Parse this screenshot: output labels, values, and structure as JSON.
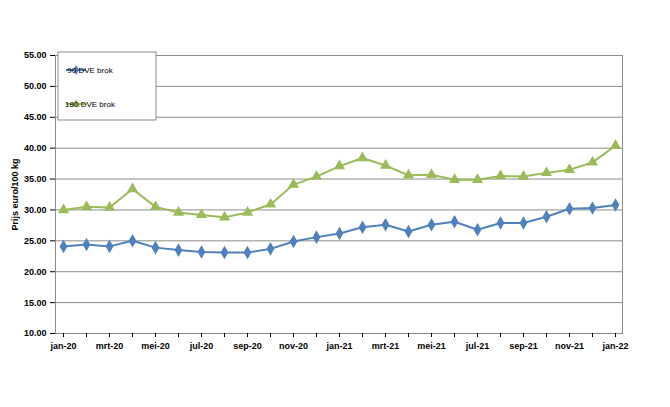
{
  "chart_data": {
    "type": "line",
    "y_label": "Prijs euro/100 kg",
    "x": [
      "jan-20",
      null,
      "mrt-20",
      null,
      "mei-20",
      null,
      "jul-20",
      null,
      "sep-20",
      null,
      "nov-20",
      null,
      "jan-21",
      null,
      "mrt-21",
      null,
      "mei-21",
      null,
      "jul-21",
      null,
      "sep-21",
      null,
      "nov-21",
      null,
      "jan-22"
    ],
    "series": [
      {
        "name": "90 DVE brok",
        "color": "#4f81bd",
        "marker": "diamond",
        "values": [
          24.1,
          24.4,
          24.1,
          25.0,
          23.9,
          23.5,
          23.2,
          23.1,
          23.1,
          23.7,
          24.9,
          25.6,
          26.2,
          27.2,
          27.6,
          26.5,
          27.6,
          28.1,
          26.8,
          27.9,
          27.9,
          28.9,
          30.2,
          30.3,
          30.8
        ]
      },
      {
        "name": "180 DVE brok",
        "color": "#9bbb59",
        "marker": "triangle",
        "values": [
          30.0,
          30.5,
          30.4,
          33.4,
          30.5,
          29.6,
          29.2,
          28.8,
          29.6,
          30.9,
          34.1,
          35.4,
          37.1,
          38.4,
          37.2,
          35.6,
          35.7,
          34.9,
          34.9,
          35.5,
          35.4,
          36.0,
          36.5,
          37.7,
          40.4
        ]
      }
    ],
    "ylim": [
      10,
      55
    ],
    "yticks": [
      {
        "value": 10,
        "label": "10.00"
      },
      {
        "value": 15,
        "label": "15.00"
      },
      {
        "value": 20,
        "label": "20.00"
      },
      {
        "value": 25,
        "label": "25.00"
      },
      {
        "value": 30,
        "label": "30.00"
      },
      {
        "value": 35,
        "label": "35.00"
      },
      {
        "value": 40,
        "label": "40.00"
      },
      {
        "value": 45,
        "label": "45.00"
      },
      {
        "value": 50,
        "label": "50.00"
      },
      {
        "value": 55,
        "label": "55.00"
      }
    ],
    "grid": true,
    "legend": "top-left"
  }
}
